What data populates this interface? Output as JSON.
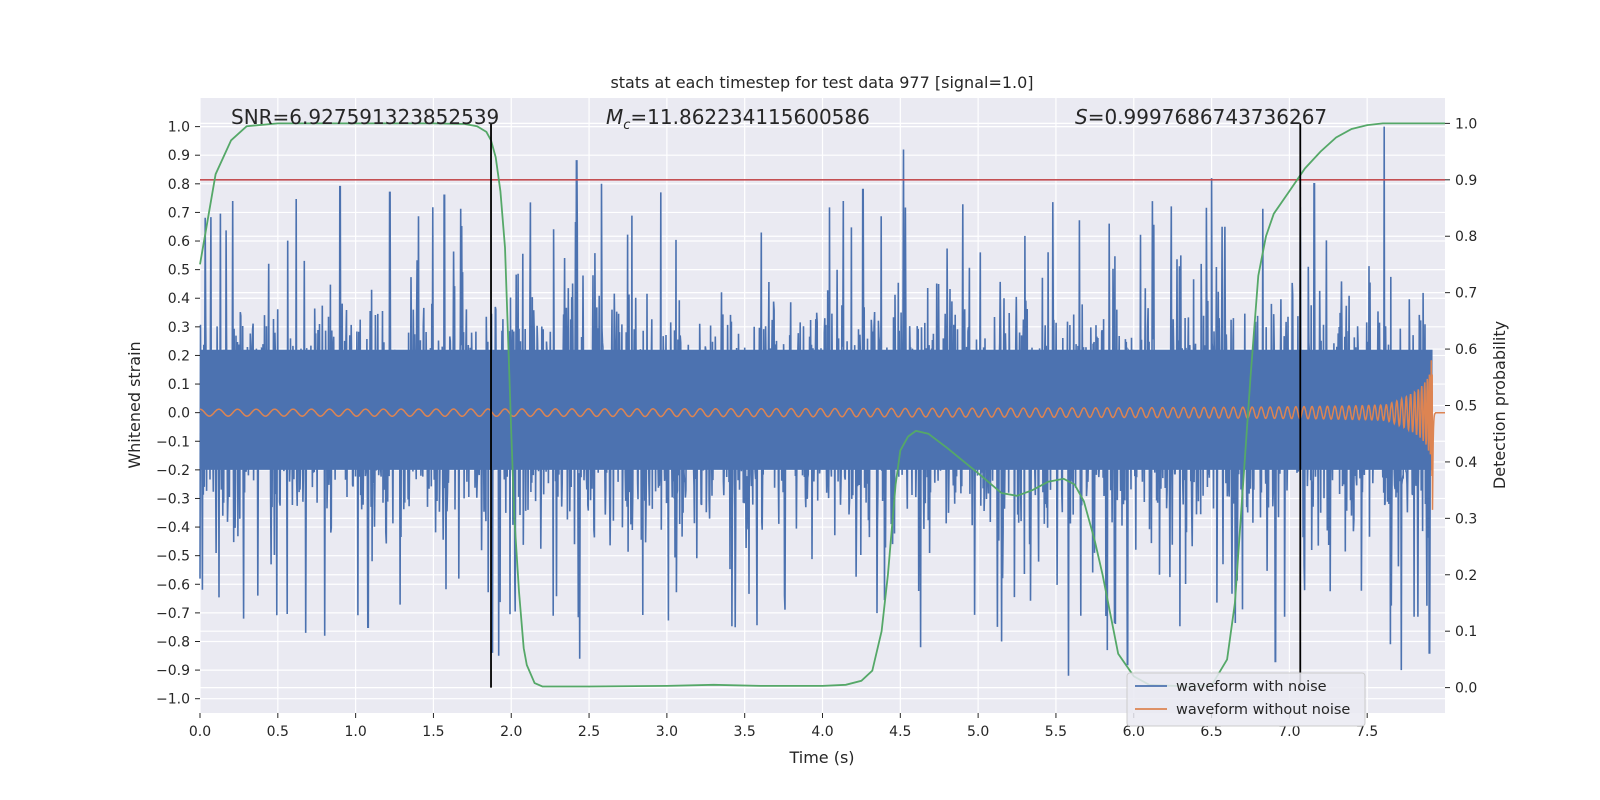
{
  "chart_data": {
    "type": "line",
    "title": "stats at each timestep for test data 977 [signal=1.0]",
    "xlabel": "Time (s)",
    "ylabel": "Whitened strain",
    "y2label": "Detection probability",
    "xlim": [
      0,
      8
    ],
    "ylim": [
      -1.05,
      1.1
    ],
    "y2lim": [
      -0.045,
      1.045
    ],
    "x_ticks": [
      "0.0",
      "0.5",
      "1.0",
      "1.5",
      "2.0",
      "2.5",
      "3.0",
      "3.5",
      "4.0",
      "4.5",
      "5.0",
      "5.5",
      "6.0",
      "6.5",
      "7.0",
      "7.5"
    ],
    "y_ticks": [
      "1.0",
      "0.9",
      "0.8",
      "0.7",
      "0.6",
      "0.5",
      "0.4",
      "0.3",
      "0.2",
      "0.1",
      "0.0",
      "-0.1",
      "-0.2",
      "-0.3",
      "-0.4",
      "-0.5",
      "-0.6",
      "-0.7",
      "-0.8",
      "-0.9",
      "-1.0"
    ],
    "y2_ticks": [
      "1.0",
      "0.9",
      "0.8",
      "0.7",
      "0.6",
      "0.5",
      "0.4",
      "0.3",
      "0.2",
      "0.1",
      "0.0"
    ],
    "grid": true,
    "legend_position": "lower-right",
    "annotations": {
      "snr": "SNR=6.927591323852539",
      "mc_symbol": "M",
      "mc_subscript": "c",
      "mc_value": "=11.862234115600586",
      "s_symbol": "S",
      "s_value": "=0.9997686743736267"
    },
    "threshold": {
      "value": 0.9,
      "axis": "right",
      "color": "#c44e52"
    },
    "vertical_lines": [
      1.87,
      7.07
    ],
    "series": [
      {
        "name": "waveform with noise",
        "color": "#4c72b0",
        "kind": "noise",
        "envelope_typical": 0.35,
        "peak_values": [
          [
            0.0,
            -0.58
          ],
          [
            0.21,
            0.74
          ],
          [
            0.28,
            -0.72
          ],
          [
            0.68,
            -0.77
          ],
          [
            0.8,
            -0.78
          ],
          [
            0.9,
            0.79
          ],
          [
            1.08,
            -0.75
          ],
          [
            1.22,
            0.77
          ],
          [
            1.57,
            0.76
          ],
          [
            1.88,
            -0.84
          ],
          [
            1.92,
            -0.85
          ],
          [
            2.42,
            0.88
          ],
          [
            2.44,
            -0.86
          ],
          [
            2.58,
            0.8
          ],
          [
            2.96,
            0.77
          ],
          [
            3.44,
            -0.75
          ],
          [
            4.26,
            0.78
          ],
          [
            4.52,
            0.92
          ],
          [
            4.63,
            -0.82
          ],
          [
            5.15,
            -0.8
          ],
          [
            5.58,
            -0.92
          ],
          [
            5.66,
            -0.71
          ],
          [
            5.83,
            -0.83
          ],
          [
            5.96,
            -0.88
          ],
          [
            6.5,
            0.82
          ],
          [
            6.91,
            -0.87
          ],
          [
            7.16,
            0.8
          ],
          [
            7.61,
            1.0
          ],
          [
            7.65,
            -0.81
          ],
          [
            7.72,
            -0.9
          ],
          [
            7.9,
            -0.84
          ]
        ]
      },
      {
        "name": "waveform without noise",
        "color": "#dd8452",
        "kind": "chirp",
        "merger_time": 7.92,
        "max_amplitude": 0.37,
        "start_amplitude": 0.012
      },
      {
        "name": "",
        "color": "#55a868",
        "axis": "right",
        "points": [
          [
            0,
            0.75
          ],
          [
            0.05,
            0.83
          ],
          [
            0.1,
            0.91
          ],
          [
            0.2,
            0.97
          ],
          [
            0.3,
            0.995
          ],
          [
            0.5,
            1.0
          ],
          [
            1.0,
            1.0
          ],
          [
            1.5,
            1.0
          ],
          [
            1.7,
            0.999
          ],
          [
            1.78,
            0.995
          ],
          [
            1.84,
            0.985
          ],
          [
            1.87,
            0.97
          ],
          [
            1.9,
            0.94
          ],
          [
            1.93,
            0.88
          ],
          [
            1.96,
            0.78
          ],
          [
            1.98,
            0.62
          ],
          [
            2.0,
            0.45
          ],
          [
            2.02,
            0.3
          ],
          [
            2.05,
            0.17
          ],
          [
            2.08,
            0.07
          ],
          [
            2.1,
            0.04
          ],
          [
            2.15,
            0.008
          ],
          [
            2.2,
            0.002
          ],
          [
            2.5,
            0.002
          ],
          [
            3.0,
            0.003
          ],
          [
            3.3,
            0.005
          ],
          [
            3.6,
            0.003
          ],
          [
            4.0,
            0.003
          ],
          [
            4.15,
            0.005
          ],
          [
            4.25,
            0.012
          ],
          [
            4.32,
            0.03
          ],
          [
            4.38,
            0.1
          ],
          [
            4.42,
            0.2
          ],
          [
            4.47,
            0.36
          ],
          [
            4.5,
            0.42
          ],
          [
            4.55,
            0.445
          ],
          [
            4.6,
            0.455
          ],
          [
            4.68,
            0.45
          ],
          [
            4.8,
            0.425
          ],
          [
            5.0,
            0.38
          ],
          [
            5.15,
            0.345
          ],
          [
            5.25,
            0.34
          ],
          [
            5.35,
            0.35
          ],
          [
            5.45,
            0.365
          ],
          [
            5.55,
            0.37
          ],
          [
            5.62,
            0.36
          ],
          [
            5.68,
            0.33
          ],
          [
            5.75,
            0.26
          ],
          [
            5.8,
            0.2
          ],
          [
            5.85,
            0.13
          ],
          [
            5.9,
            0.06
          ],
          [
            6.0,
            0.02
          ],
          [
            6.1,
            0.005
          ],
          [
            6.35,
            0.002
          ],
          [
            6.5,
            0.004
          ],
          [
            6.6,
            0.05
          ],
          [
            6.65,
            0.15
          ],
          [
            6.7,
            0.35
          ],
          [
            6.75,
            0.55
          ],
          [
            6.8,
            0.73
          ],
          [
            6.85,
            0.8
          ],
          [
            6.9,
            0.84
          ],
          [
            7.0,
            0.88
          ],
          [
            7.1,
            0.92
          ],
          [
            7.2,
            0.95
          ],
          [
            7.3,
            0.975
          ],
          [
            7.4,
            0.99
          ],
          [
            7.5,
            0.997
          ],
          [
            7.6,
            1.0
          ],
          [
            8.0,
            1.0
          ]
        ]
      }
    ]
  }
}
